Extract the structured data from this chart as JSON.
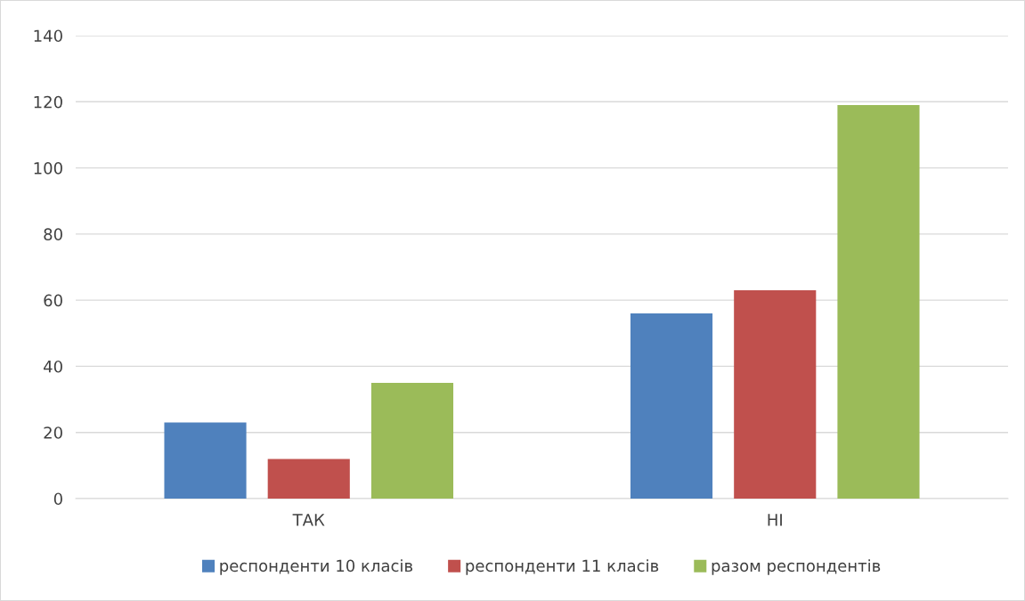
{
  "chart_data": {
    "type": "bar",
    "categories": [
      "ТАК",
      "НІ"
    ],
    "series": [
      {
        "name": "респонденти 10 класів",
        "color": "#4f81bd",
        "values": [
          23,
          56
        ]
      },
      {
        "name": "респонденти 11 класів",
        "color": "#c0504d",
        "values": [
          12,
          63
        ]
      },
      {
        "name": "разом респондентів",
        "color": "#9bbb59",
        "values": [
          35,
          119
        ]
      }
    ],
    "ylim": [
      0,
      140
    ],
    "yticks": [
      0,
      20,
      40,
      60,
      80,
      100,
      120,
      140
    ],
    "grid": "y",
    "legend": "bottom"
  }
}
